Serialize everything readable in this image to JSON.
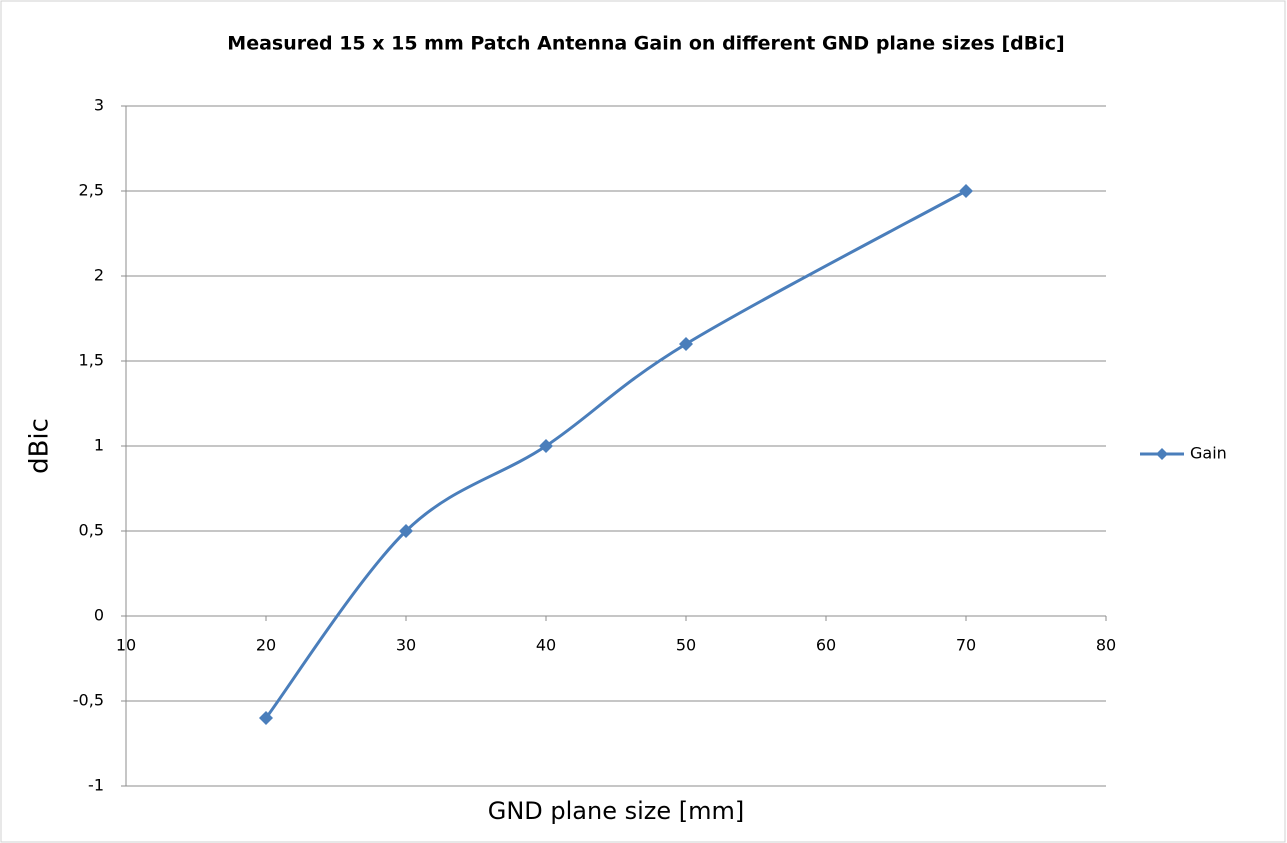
{
  "chart_data": {
    "type": "line",
    "title": "Measured 15 x 15 mm Patch Antenna Gain on different GND plane sizes [dBic]",
    "xlabel": "GND plane size  [mm]",
    "ylabel": "dBic",
    "x": [
      20,
      30,
      40,
      50,
      70
    ],
    "series": [
      {
        "name": "Gain",
        "color": "#4a7ebb",
        "values": [
          -0.6,
          0.5,
          1.0,
          1.6,
          2.5
        ]
      }
    ],
    "xlim": [
      10,
      80
    ],
    "xticks": [
      10,
      20,
      30,
      40,
      50,
      60,
      70,
      80
    ],
    "ylim": [
      -1,
      3
    ],
    "yticks": [
      -1,
      {
        "value": -0.5,
        "label": "-0,5"
      },
      0,
      {
        "value": 0.5,
        "label": "0,5"
      },
      1,
      {
        "value": 1.5,
        "label": "1,5"
      },
      2,
      {
        "value": 2.5,
        "label": "2,5"
      },
      3
    ],
    "grid": true,
    "smooth": true,
    "legend": "right"
  }
}
